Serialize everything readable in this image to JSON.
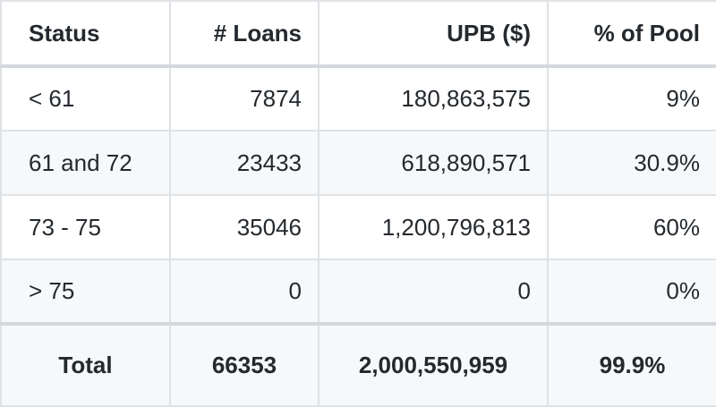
{
  "table": {
    "headers": [
      "Status",
      "# Loans",
      "UPB ($)",
      "% of Pool"
    ],
    "rows": [
      {
        "status": "< 61",
        "loans": "7874",
        "upb": "180,863,575",
        "pool": "9%"
      },
      {
        "status": "61 and 72",
        "loans": "23433",
        "upb": "618,890,571",
        "pool": "30.9%"
      },
      {
        "status": "73 - 75",
        "loans": "35046",
        "upb": "1,200,796,813",
        "pool": "60%"
      },
      {
        "status": "> 75",
        "loans": "0",
        "upb": "0",
        "pool": "0%"
      }
    ],
    "total": {
      "status": "Total",
      "loans": "66353",
      "upb": "2,000,550,959",
      "pool": "99.9%"
    }
  }
}
